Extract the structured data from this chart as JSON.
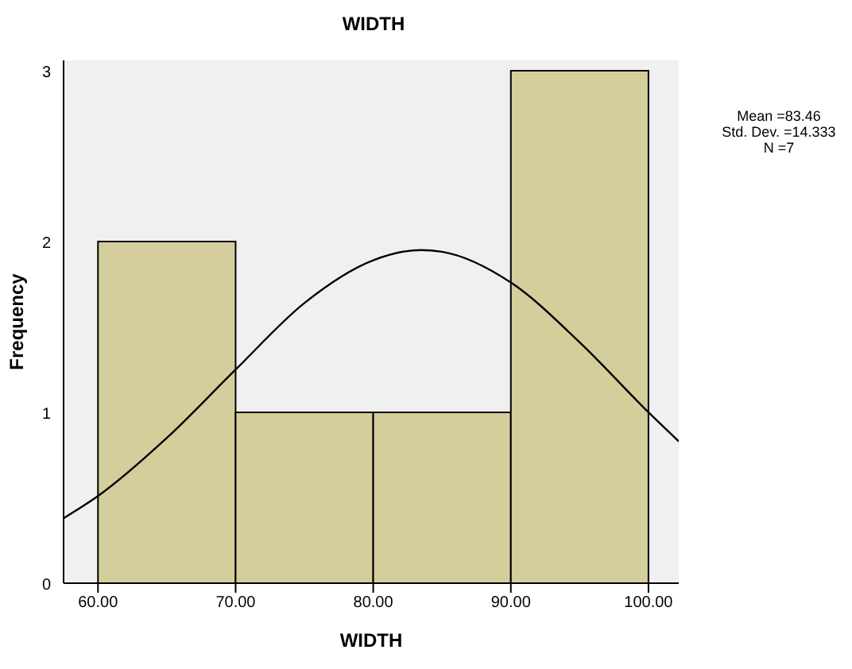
{
  "chart_data": {
    "type": "histogram",
    "title": "WIDTH",
    "xlabel": "WIDTH",
    "ylabel": "Frequency",
    "bins": [
      60,
      70,
      80,
      90,
      100
    ],
    "values": [
      2,
      1,
      1,
      3
    ],
    "color": "#d3ce9b",
    "series": [
      {
        "type": "line",
        "color": "#000000",
        "x": [
          57.5,
          60,
          65,
          70,
          75,
          80,
          83.46,
          85,
          90,
          95,
          100,
          102.2
        ],
        "values": [
          0.38,
          0.51,
          0.85,
          1.25,
          1.64,
          1.89,
          1.95,
          1.94,
          1.76,
          1.41,
          1.0,
          0.83
        ]
      }
    ],
    "xlim": [
      57.5,
      102.2
    ],
    "xticks": [
      {
        "value": 60,
        "label": "60.00"
      },
      {
        "value": 70,
        "label": "70.00"
      },
      {
        "value": 80,
        "label": "80.00"
      },
      {
        "value": 90,
        "label": "90.00"
      },
      {
        "value": 100,
        "label": "100.00"
      }
    ],
    "ylim": [
      0,
      3.06
    ],
    "yticks": [
      0,
      1,
      2,
      3
    ],
    "grid": false,
    "annotations": [
      "Mean =83.46",
      "Std. Dev. =14.333",
      "N =7"
    ]
  }
}
